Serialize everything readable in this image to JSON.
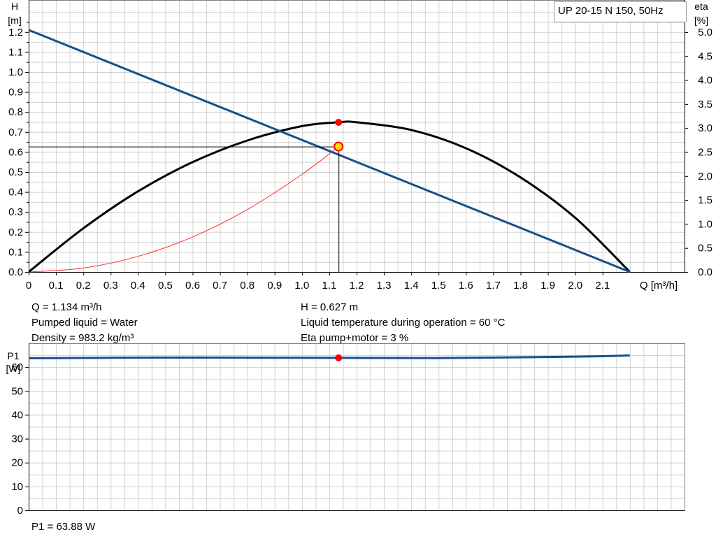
{
  "legend_box": "UP 20-15 N 150, 50Hz",
  "top_chart_axes": {
    "y_left_label": "H",
    "y_left_unit": "[m]",
    "y_right_label": "eta",
    "y_right_unit": "[%]",
    "x_label": "Q [m³/h]",
    "x_ticks": [
      "0",
      "0.1",
      "0.2",
      "0.3",
      "0.4",
      "0.5",
      "0.6",
      "0.7",
      "0.8",
      "0.9",
      "1.0",
      "1.1",
      "1.2",
      "1.3",
      "1.4",
      "1.5",
      "1.6",
      "1.7",
      "1.8",
      "1.9",
      "2.0",
      "2.1"
    ],
    "y_left_ticks": [
      "0.0",
      "0.1",
      "0.2",
      "0.3",
      "0.4",
      "0.5",
      "0.6",
      "0.7",
      "0.8",
      "0.9",
      "1.0",
      "1.1",
      "1.2"
    ],
    "y_right_ticks": [
      "0.0",
      "0.5",
      "1.0",
      "1.5",
      "2.0",
      "2.5",
      "3.0",
      "3.5",
      "4.0",
      "4.5",
      "5.0"
    ]
  },
  "bottom_chart_axes": {
    "y_label": "P1",
    "y_unit": "[W]",
    "y_ticks": [
      "0",
      "10",
      "20",
      "30",
      "40",
      "50",
      "60"
    ]
  },
  "info": {
    "q": "Q = 1.134 m³/h",
    "pumped_liquid": "Pumped liquid = Water",
    "density": "Density = 983.2 kg/m³",
    "h": "H = 0.627 m",
    "liquid_temp": "Liquid temperature during operation = 60 °C",
    "eta": "Eta pump+motor = 3 %",
    "p1": "P1 = 63.88 W"
  },
  "colors": {
    "pump_curve": "#1a4f8a",
    "eta_curve": "#000000",
    "system_curve": "#ff3030",
    "duty_point": "#ff0000",
    "duty_point_highlight": "#ffe000",
    "grid": "#d0d0d0"
  },
  "chart_data": [
    {
      "type": "line",
      "x_label": "Q [m³/h]",
      "xlim": [
        0,
        2.4
      ],
      "ylim": [
        0,
        1.36
      ],
      "y2lim": [
        0,
        5.67
      ],
      "series": [
        {
          "key": "pump_curve",
          "axis": "left",
          "x": [
            0,
            2.2
          ],
          "y": [
            1.21,
            0
          ]
        },
        {
          "key": "eta_curve",
          "axis": "right",
          "x": [
            0,
            0.2,
            0.4,
            0.6,
            0.8,
            1.0,
            1.134,
            1.2,
            1.4,
            1.6,
            1.8,
            2.0,
            2.2
          ],
          "y": [
            0,
            0.91,
            1.68,
            2.29,
            2.74,
            3.04,
            3.12,
            3.12,
            2.96,
            2.58,
            1.97,
            1.13,
            0
          ]
        },
        {
          "key": "system_curve",
          "axis": "left",
          "x": [
            0,
            0.2,
            0.4,
            0.6,
            0.8,
            1.0,
            1.134
          ],
          "y": [
            0,
            0.0195,
            0.078,
            0.175,
            0.312,
            0.488,
            0.627
          ]
        }
      ],
      "duty_point": {
        "q": 1.134,
        "h": 0.627,
        "eta": 3.12
      }
    },
    {
      "type": "line",
      "xlim": [
        0,
        2.4
      ],
      "ylim": [
        0,
        70
      ],
      "series": [
        {
          "key": "p1_curve",
          "axis": "left",
          "x": [
            0,
            0.5,
            1.0,
            1.134,
            1.5,
            2.0,
            2.2
          ],
          "y": [
            63.7,
            64.0,
            63.9,
            63.88,
            63.8,
            64.4,
            64.9
          ]
        }
      ],
      "duty_point": {
        "q": 1.134,
        "p1": 63.88
      }
    }
  ]
}
